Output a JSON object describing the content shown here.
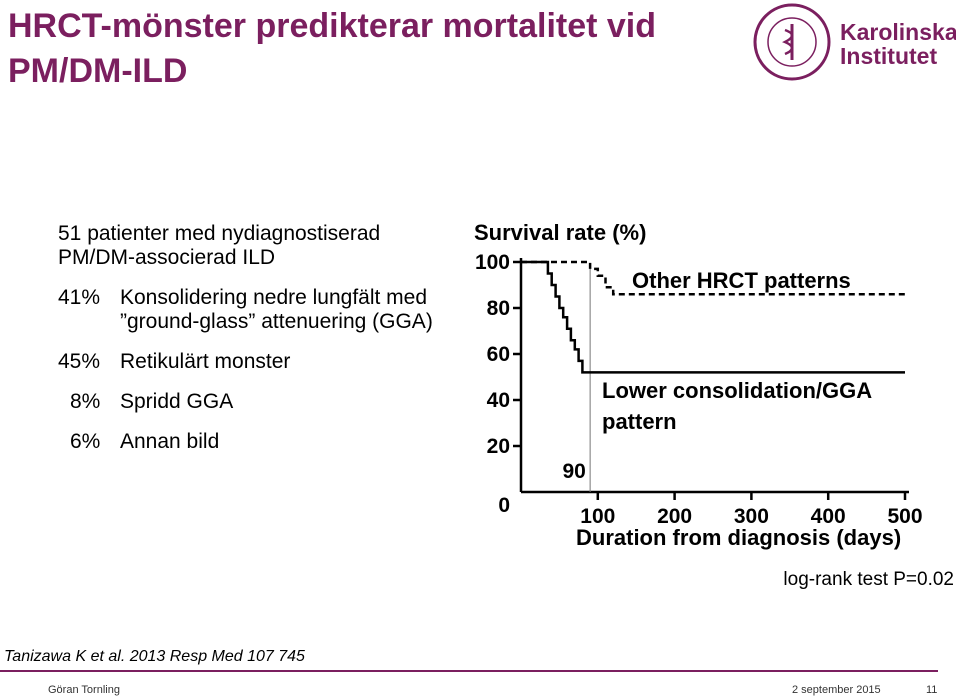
{
  "slide": {
    "title": "HRCT-mönster predikterar mortalitet vid PM/DM-ILD",
    "intro": "51 patienter med nydiagnostiserad PM/DM-associerad ILD",
    "items": [
      {
        "pct": "41%",
        "text": "Konsolidering nedre lungfält med ”ground-glass” attenuering (GGA)"
      },
      {
        "pct": "45%",
        "text": "Retikulärt monster"
      },
      {
        "pct": "8%",
        "text": "Spridd GGA"
      },
      {
        "pct": "6%",
        "text": "Annan bild"
      }
    ],
    "logrank": "log-rank test P=0.02",
    "citation": "Tanizawa K et al. 2013 Resp Med 107 745"
  },
  "logo": {
    "seal_text": "KAROLINSKA INSTITUTET ANNO 1810",
    "name_line1": "Karolinska",
    "name_line2": "Institutet",
    "color": "#7b1f5f"
  },
  "footer": {
    "author": "Göran Tornling",
    "date": "2 september 2015",
    "page": "11"
  },
  "colors": {
    "accent": "#7b1f5f",
    "text": "#000000"
  },
  "chart_data": {
    "type": "line",
    "ylabel": "Survival rate (%)",
    "xlabel": "Duration from diagnosis (days)",
    "xlim": [
      0,
      500
    ],
    "ylim": [
      0,
      100
    ],
    "xticks": [
      100,
      200,
      300,
      400,
      500
    ],
    "yticks": [
      0,
      20,
      40,
      60,
      80,
      100
    ],
    "annotation_90": "90",
    "marker_x": 90,
    "series": [
      {
        "name": "Other HRCT patterns",
        "style": "dashed",
        "x": [
          0,
          90,
          90,
          100,
          100,
          110,
          110,
          120,
          120,
          500
        ],
        "y": [
          100,
          100,
          97,
          97,
          94,
          94,
          89,
          89,
          86,
          86
        ]
      },
      {
        "name": "Lower consolidation/GGA pattern",
        "style": "solid",
        "x": [
          0,
          35,
          35,
          40,
          40,
          45,
          45,
          50,
          50,
          55,
          55,
          60,
          60,
          65,
          65,
          70,
          70,
          75,
          75,
          80,
          80,
          500
        ],
        "y": [
          100,
          100,
          95,
          95,
          90,
          90,
          85,
          85,
          80,
          80,
          76,
          76,
          71,
          71,
          66,
          66,
          62,
          62,
          57,
          57,
          52,
          52
        ]
      }
    ]
  }
}
